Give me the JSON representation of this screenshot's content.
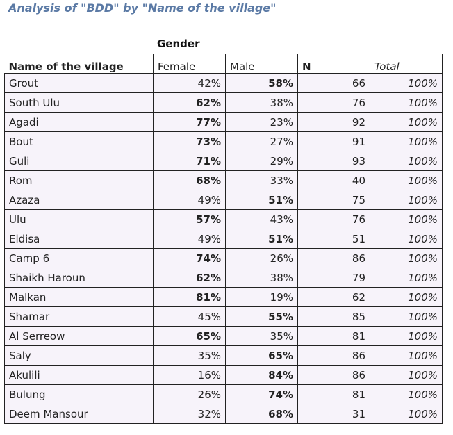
{
  "title": "Analysis of \"BDD\" by \"Name of the village\"",
  "group_label": "Gender",
  "columns": {
    "village": "Name of the village",
    "female": "Female",
    "male": "Male",
    "n": "N",
    "total": "Total"
  },
  "rows": [
    {
      "name": "Grout",
      "female": "42%",
      "male": "58%",
      "n": "66",
      "total": "100%",
      "bold": "male"
    },
    {
      "name": "South Ulu",
      "female": "62%",
      "male": "38%",
      "n": "76",
      "total": "100%",
      "bold": "female"
    },
    {
      "name": "Agadi",
      "female": "77%",
      "male": "23%",
      "n": "92",
      "total": "100%",
      "bold": "female"
    },
    {
      "name": "Bout",
      "female": "73%",
      "male": "27%",
      "n": "91",
      "total": "100%",
      "bold": "female"
    },
    {
      "name": "Guli",
      "female": "71%",
      "male": "29%",
      "n": "93",
      "total": "100%",
      "bold": "female"
    },
    {
      "name": "Rom",
      "female": "68%",
      "male": "33%",
      "n": "40",
      "total": "100%",
      "bold": "female"
    },
    {
      "name": "Azaza",
      "female": "49%",
      "male": "51%",
      "n": "75",
      "total": "100%",
      "bold": "male"
    },
    {
      "name": "Ulu",
      "female": "57%",
      "male": "43%",
      "n": "76",
      "total": "100%",
      "bold": "female"
    },
    {
      "name": "Eldisa",
      "female": "49%",
      "male": "51%",
      "n": "51",
      "total": "100%",
      "bold": "male"
    },
    {
      "name": "Camp 6",
      "female": "74%",
      "male": "26%",
      "n": "86",
      "total": "100%",
      "bold": "female"
    },
    {
      "name": "Shaikh Haroun",
      "female": "62%",
      "male": "38%",
      "n": "79",
      "total": "100%",
      "bold": "female"
    },
    {
      "name": "Malkan",
      "female": "81%",
      "male": "19%",
      "n": "62",
      "total": "100%",
      "bold": "female"
    },
    {
      "name": "Shamar",
      "female": "45%",
      "male": "55%",
      "n": "85",
      "total": "100%",
      "bold": "male"
    },
    {
      "name": "Al Serreow",
      "female": "65%",
      "male": "35%",
      "n": "81",
      "total": "100%",
      "bold": "female"
    },
    {
      "name": "Saly",
      "female": "35%",
      "male": "65%",
      "n": "86",
      "total": "100%",
      "bold": "male"
    },
    {
      "name": "Akulili",
      "female": "16%",
      "male": "84%",
      "n": "86",
      "total": "100%",
      "bold": "male"
    },
    {
      "name": "Bulung",
      "female": "26%",
      "male": "74%",
      "n": "81",
      "total": "100%",
      "bold": "male"
    },
    {
      "name": "Deem Mansour",
      "female": "32%",
      "male": "68%",
      "n": "31",
      "total": "100%",
      "bold": "male"
    }
  ]
}
